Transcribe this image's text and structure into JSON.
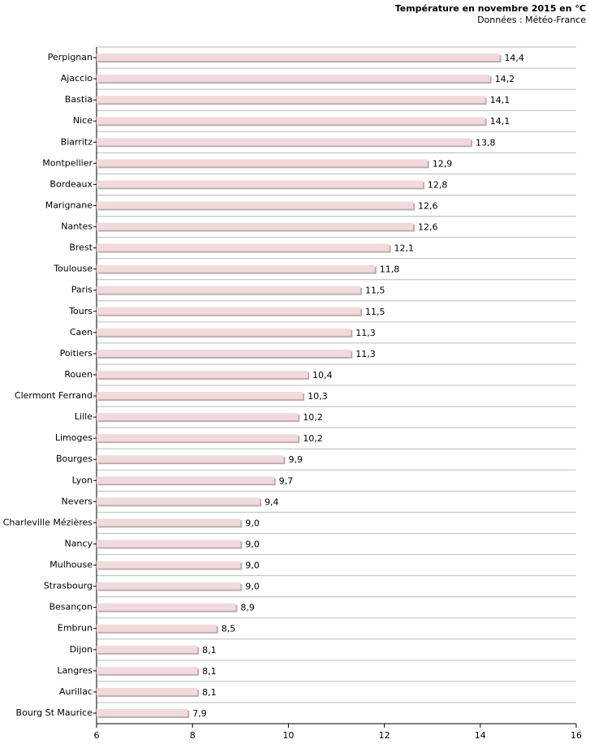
{
  "chart_data": {
    "type": "bar",
    "orientation": "horizontal",
    "title": "Température en novembre 2015 en °C",
    "subtitle": "Données : Météo-France",
    "categories": [
      "Perpignan",
      "Ajaccio",
      "Bastia",
      "Nice",
      "Biarritz",
      "Montpellier",
      "Bordeaux",
      "Marignane",
      "Nantes",
      "Brest",
      "Toulouse",
      "Paris",
      "Tours",
      "Caen",
      "Poitiers",
      "Rouen",
      "Clermont Ferrand",
      "Lille",
      "Limoges",
      "Bourges",
      "Lyon",
      "Nevers",
      "Charleville Mézières",
      "Nancy",
      "Mulhouse",
      "Strasbourg",
      "Besançon",
      "Embrun",
      "Dijon",
      "Langres",
      "Aurillac",
      "Bourg St Maurice"
    ],
    "values": [
      14.4,
      14.2,
      14.1,
      14.1,
      13.8,
      12.9,
      12.8,
      12.6,
      12.6,
      12.1,
      11.8,
      11.5,
      11.5,
      11.3,
      11.3,
      10.4,
      10.3,
      10.2,
      10.2,
      9.9,
      9.7,
      9.4,
      9.0,
      9.0,
      9.0,
      9.0,
      8.9,
      8.5,
      8.1,
      8.1,
      8.1,
      7.9
    ],
    "value_labels": [
      "14,4",
      "14,2",
      "14,1",
      "14,1",
      "13,8",
      "12,9",
      "12,8",
      "12,6",
      "12,6",
      "12,1",
      "11,8",
      "11,5",
      "11,5",
      "11,3",
      "11,3",
      "10,4",
      "10,3",
      "10,2",
      "10,2",
      "9,9",
      "9,7",
      "9,4",
      "9,0",
      "9,0",
      "9,0",
      "9,0",
      "8,9",
      "8,5",
      "8,1",
      "8,1",
      "8,1",
      "7,9"
    ],
    "color": "#f2d9dc",
    "xlim": [
      6,
      16
    ],
    "xticks": [
      6,
      8,
      10,
      12,
      14,
      16
    ]
  }
}
